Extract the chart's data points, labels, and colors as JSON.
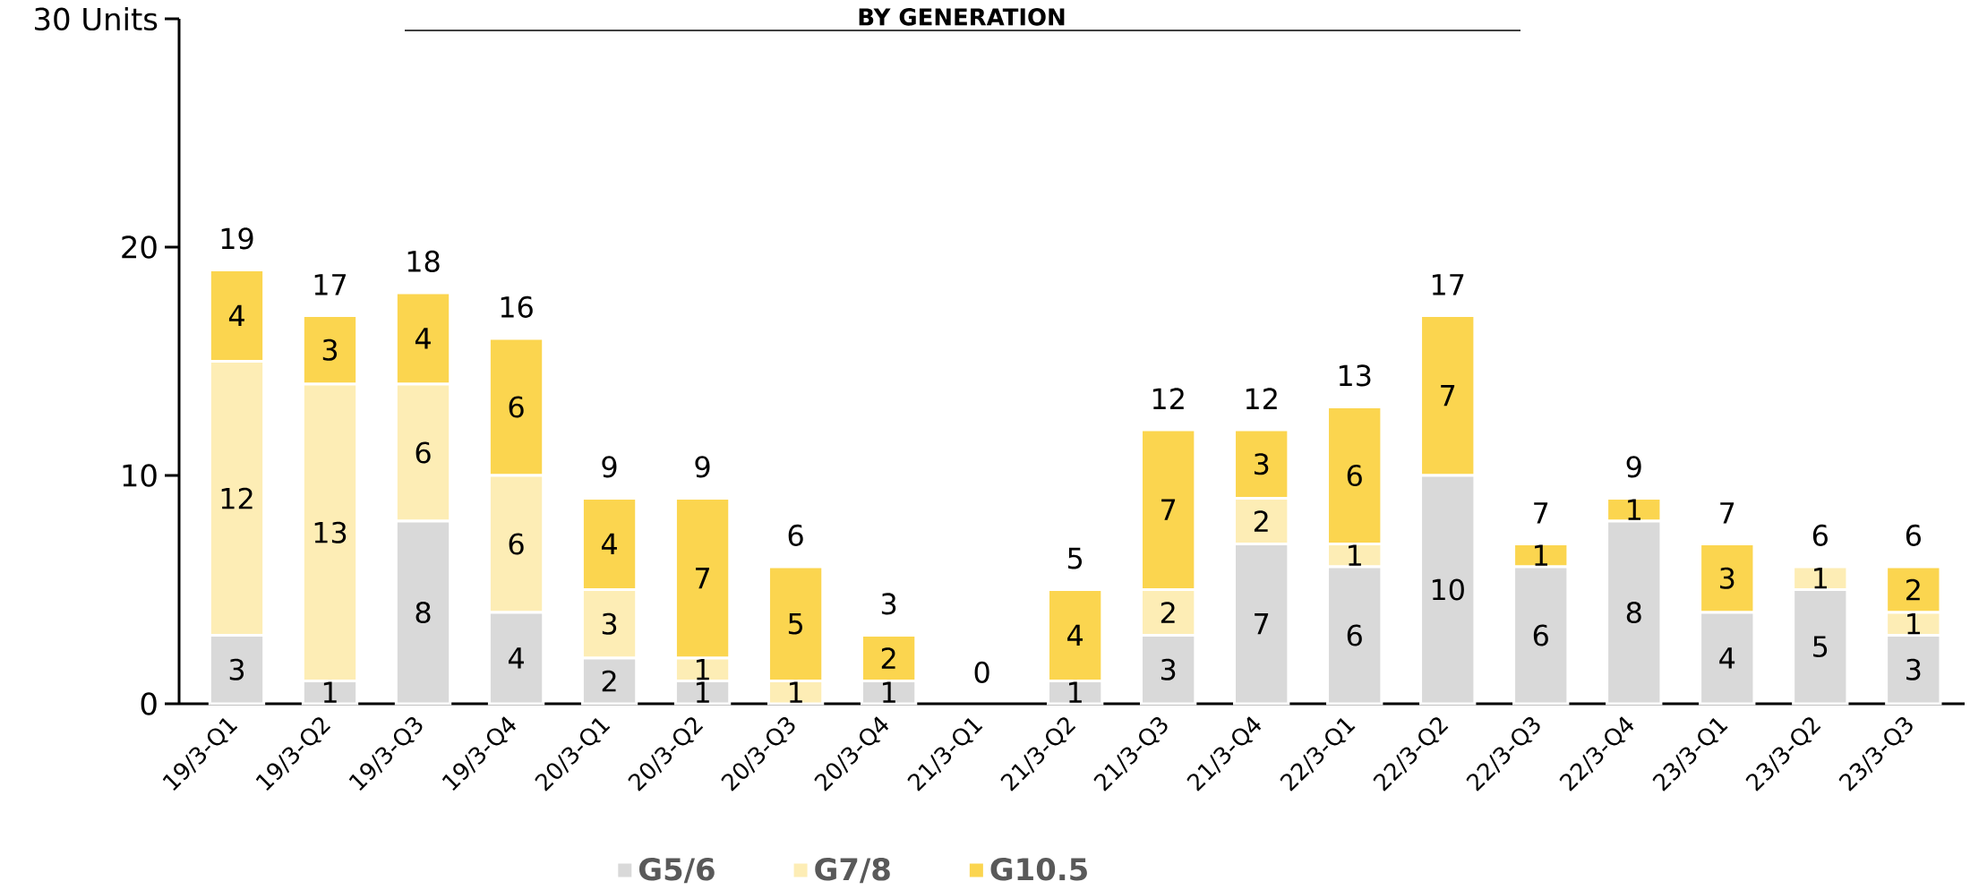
{
  "chart_data": {
    "type": "bar",
    "title": "BY GENERATION",
    "stacked": true,
    "categories": [
      "19/3-Q1",
      "19/3-Q2",
      "19/3-Q3",
      "19/3-Q4",
      "20/3-Q1",
      "20/3-Q2",
      "20/3-Q3",
      "20/3-Q4",
      "21/3-Q1",
      "21/3-Q2",
      "21/3-Q3",
      "21/3-Q4",
      "22/3-Q1",
      "22/3-Q2",
      "22/3-Q3",
      "22/3-Q4",
      "23/3-Q1",
      "23/3-Q2",
      "23/3-Q3"
    ],
    "series": [
      {
        "name": "G5/6",
        "color": "#d9d9d9",
        "values": [
          3,
          1,
          8,
          4,
          2,
          1,
          0,
          1,
          0,
          1,
          3,
          7,
          6,
          10,
          6,
          8,
          4,
          5,
          3
        ],
        "value_labels": [
          "3",
          "1",
          "8",
          "4",
          "2",
          "1",
          null,
          "1",
          null,
          "1",
          "3",
          "7",
          "6",
          "10",
          "6",
          "8",
          "4",
          "5",
          "3"
        ]
      },
      {
        "name": "G7/8",
        "color": "#fdedb5",
        "values": [
          12,
          13,
          6,
          6,
          3,
          1,
          1,
          0,
          0,
          0,
          2,
          2,
          1,
          0,
          0,
          0,
          0,
          1,
          1
        ],
        "value_labels": [
          "12",
          "13",
          "6",
          "6",
          "3",
          "1",
          "1",
          null,
          null,
          null,
          "2",
          "2",
          "1",
          null,
          null,
          null,
          null,
          "1",
          "1"
        ]
      },
      {
        "name": "G10.5",
        "color": "#fbd54f",
        "values": [
          4,
          3,
          4,
          6,
          4,
          7,
          5,
          2,
          0,
          4,
          7,
          3,
          6,
          7,
          1,
          1,
          3,
          0,
          2
        ],
        "value_labels": [
          "4",
          "3",
          "4",
          "6",
          "4",
          "7",
          "5",
          "2",
          null,
          "4",
          "7",
          "3",
          "6",
          "7",
          "1",
          "1",
          "3",
          null,
          "2"
        ]
      }
    ],
    "totals": [
      "19",
      "17",
      "18",
      "16",
      "9",
      "9",
      "6",
      "3",
      "0",
      "5",
      "12",
      "12",
      "13",
      "17",
      "7",
      "9",
      "7",
      "6",
      "6"
    ],
    "ylim": [
      0,
      30
    ],
    "yticks": [
      0,
      10,
      20,
      {
        "value": 30,
        "label": "30 Units"
      }
    ],
    "legend": "bottom"
  }
}
